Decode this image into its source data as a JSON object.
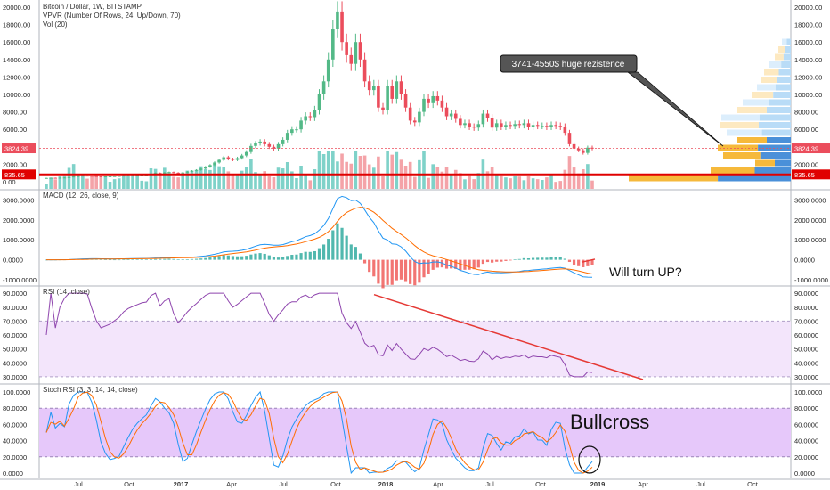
{
  "chart_data": [
    {
      "type": "candlestick",
      "title": "Bitcoin / Dollar, 1W, BITSTAMP",
      "indicators": [
        "VPVR (Number Of Rows, 24, Up/Down, 70)",
        "Vol (20)"
      ],
      "y_ticks": [
        "20000.00",
        "18000.00",
        "16000.00",
        "14000.00",
        "12000.00",
        "10000.00",
        "8000.00",
        "6000.00",
        "4000.00",
        "2000.00",
        "0.00"
      ],
      "right_ticks": [
        "20000.00",
        "18000.00",
        "16000.00",
        "14000.00",
        "12000.00",
        "10000.00",
        "8000.00",
        "6000.00",
        "4000.00",
        "2000.00"
      ],
      "price_label": "3824.39",
      "support_label": "835.65",
      "price": 3824.39,
      "support": 835.65,
      "ylim": [
        0,
        20000
      ],
      "closes": [
        430,
        450,
        440,
        460,
        480,
        530,
        600,
        650,
        700,
        680,
        650,
        620,
        600,
        610,
        620,
        640,
        660,
        700,
        730,
        750,
        770,
        790,
        800,
        900,
        1000,
        950,
        1050,
        1100,
        1030,
        980,
        1050,
        1150,
        1250,
        1350,
        1500,
        1700,
        1900,
        2200,
        2500,
        2800,
        2600,
        2500,
        2700,
        3000,
        3400,
        4100,
        4400,
        4600,
        4300,
        4000,
        3800,
        4300,
        4800,
        5600,
        6000,
        6000,
        7000,
        7500,
        7400,
        8200,
        10000,
        11500,
        14000,
        17500,
        19500,
        16000,
        14500,
        13500,
        16000,
        14000,
        11500,
        10500,
        11000,
        8500,
        8200,
        11000,
        9500,
        11500,
        10000,
        8500,
        7000,
        6800,
        8000,
        9500,
        9000,
        9800,
        9300,
        8500,
        7500,
        7800,
        7200,
        6500,
        6700,
        6300,
        6200,
        6600,
        7800,
        7300,
        6200,
        6700,
        6300,
        6500,
        6400,
        6600,
        6500,
        6700,
        6300,
        6500,
        6400,
        6400,
        6300,
        6500,
        6400,
        6300,
        5600,
        4300,
        3800,
        3600,
        3300,
        3900,
        3824
      ]
    },
    {
      "type": "line",
      "title": "MACD (12, 26, close, 9)",
      "y_ticks": [
        "3000.0000",
        "2000.0000",
        "1000.0000",
        "0.0000",
        "-1000.0000"
      ],
      "ylim": [
        -1000,
        3200
      ],
      "annotation": "Will turn UP?"
    },
    {
      "type": "line",
      "title": "RSI (14, close)",
      "y_ticks": [
        "90.0000",
        "80.0000",
        "70.0000",
        "60.0000",
        "50.0000",
        "40.0000",
        "30.0000"
      ],
      "ylim": [
        28,
        92
      ]
    },
    {
      "type": "line",
      "title": "Stoch RSI (3, 3, 14, 14, close)",
      "y_ticks": [
        "100.0000",
        "80.0000",
        "60.0000",
        "40.0000",
        "20.0000",
        "0.0000"
      ],
      "ylim": [
        0,
        100
      ],
      "annotation": "Bullcross"
    }
  ],
  "x_ticks": [
    "Jul",
    "Oct",
    "2017",
    "Apr",
    "Jul",
    "Oct",
    "2018",
    "Apr",
    "Jul",
    "Oct",
    "2019",
    "Apr",
    "Jul",
    "Oct"
  ],
  "callout": "3741-4550$ huge rezistence",
  "colors": {
    "up": "#53b987",
    "down": "#eb4d5c",
    "vol_up": "#7fd2c9",
    "vol_down": "#f4a3a8",
    "support_line": "#e00000",
    "macd": "#2196f3",
    "signal": "#ff6d00",
    "rsi": "#8e44ad",
    "rsi_band": "#f3e5fb",
    "stoch_band": "#e6c8fa",
    "stoch_k": "#2196f3",
    "stoch_d": "#ff6d00",
    "trend": "#e53935"
  }
}
